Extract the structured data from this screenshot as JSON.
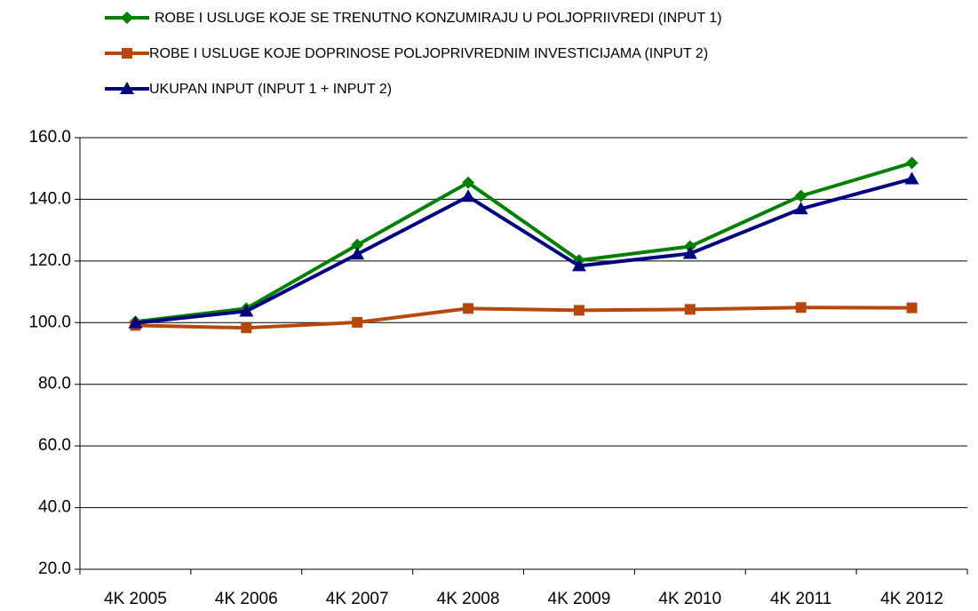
{
  "chart_data": {
    "type": "line",
    "categories": [
      "4K 2005",
      "4K 2006",
      "4K 2007",
      "4K 2008",
      "4K 2009",
      "4K 2010",
      "4K 2011",
      "4K 2012"
    ],
    "series": [
      {
        "name": "ROBE I USLUGE KOJE SE TRENUTNO KONZUMIRAJU U POLJOPRIIVREDI (INPUT 1)",
        "color": "#008000",
        "marker": "diamond",
        "values": [
          100.3,
          104.6,
          125.2,
          145.4,
          120.2,
          124.7,
          141.1,
          151.8
        ]
      },
      {
        "name": "ROBE I USLUGE KOJE DOPRINOSE POLJOPRIVREDNIM INVESTICIJAMA (INPUT 2)",
        "color": "#b5470f",
        "marker": "square",
        "values": [
          99.1,
          98.3,
          100.1,
          104.6,
          104.0,
          104.3,
          104.9,
          104.8
        ]
      },
      {
        "name": "UKUPAN INPUT (INPUT 1 + INPUT 2)",
        "color": "#000080",
        "marker": "triangle",
        "values": [
          99.9,
          103.7,
          122.2,
          140.9,
          118.4,
          122.4,
          136.9,
          146.6
        ]
      }
    ],
    "ylim": [
      20,
      160
    ],
    "yticks": [
      {
        "value": 20,
        "label": "20.0"
      },
      {
        "value": 40,
        "label": "40.0"
      },
      {
        "value": 60,
        "label": "60.0"
      },
      {
        "value": 80,
        "label": "80.0"
      },
      {
        "value": 100,
        "label": "100.0"
      },
      {
        "value": 120,
        "label": "120.0"
      },
      {
        "value": 140,
        "label": "140.0"
      },
      {
        "value": 160,
        "label": "160.0"
      }
    ],
    "grid": true
  }
}
